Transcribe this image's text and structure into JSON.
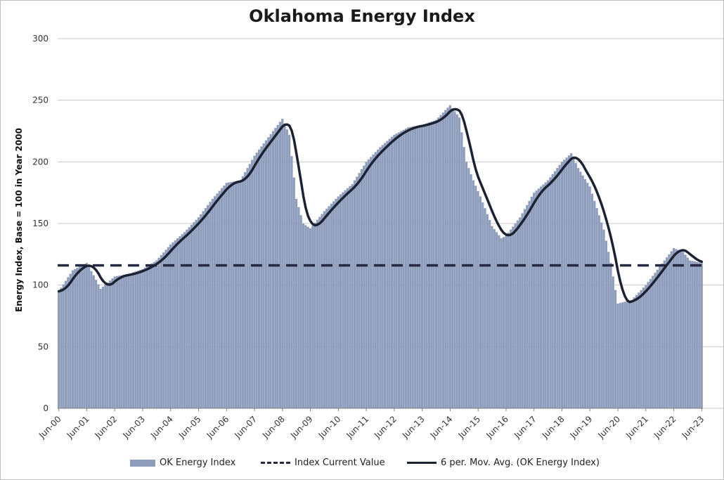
{
  "chart_data": {
    "type": "bar",
    "title": "Oklahoma Energy Index",
    "ylabel": "Energy Index, Base = 100 in Year 2000",
    "xlabel": "",
    "ylim": [
      0,
      300
    ],
    "yticks": [
      0,
      50,
      100,
      150,
      200,
      250,
      300
    ],
    "xtick_labels": [
      "Jun-00",
      "Jun-01",
      "Jun-02",
      "Jun-03",
      "Jun-04",
      "Jun-05",
      "Jun-06",
      "Jun-07",
      "Jun-08",
      "Jun-09",
      "Jun-10",
      "Jun-11",
      "Jun-12",
      "Jun-13",
      "Jun-14",
      "Jun-15",
      "Jun-16",
      "Jun-17",
      "Jun-18",
      "Jun-19",
      "Jun-20",
      "Jun-21",
      "Jun-22",
      "Jun-23"
    ],
    "grid": "horizontal",
    "legend_position": "bottom",
    "series": [
      {
        "name": "OK Energy Index",
        "type": "bar",
        "color": "#8e9dbb",
        "frequency": "monthly",
        "start": "Jun-00",
        "end": "Jun-23",
        "anchors": [
          [
            "Jun-00",
            95
          ],
          [
            "Dec-00",
            112
          ],
          [
            "Jun-01",
            118
          ],
          [
            "Sep-01",
            108
          ],
          [
            "Dec-01",
            97
          ],
          [
            "Jun-02",
            107
          ],
          [
            "Dec-02",
            109
          ],
          [
            "Jun-03",
            113
          ],
          [
            "Dec-03",
            120
          ],
          [
            "Jun-04",
            133
          ],
          [
            "Dec-04",
            143
          ],
          [
            "Jun-05",
            155
          ],
          [
            "Dec-05",
            170
          ],
          [
            "Jun-06",
            183
          ],
          [
            "Dec-06",
            185
          ],
          [
            "Jun-07",
            205
          ],
          [
            "Dec-07",
            220
          ],
          [
            "Jun-08",
            235
          ],
          [
            "Sep-08",
            222
          ],
          [
            "Dec-08",
            170
          ],
          [
            "Mar-09",
            150
          ],
          [
            "Jun-09",
            146
          ],
          [
            "Dec-09",
            160
          ],
          [
            "Jun-10",
            172
          ],
          [
            "Dec-10",
            182
          ],
          [
            "Jun-11",
            200
          ],
          [
            "Dec-11",
            212
          ],
          [
            "Jun-12",
            222
          ],
          [
            "Dec-12",
            228
          ],
          [
            "Jun-13",
            230
          ],
          [
            "Dec-13",
            234
          ],
          [
            "Jun-14",
            246
          ],
          [
            "Oct-14",
            236
          ],
          [
            "Jan-15",
            200
          ],
          [
            "Apr-15",
            185
          ],
          [
            "Jul-15",
            172
          ],
          [
            "Dec-15",
            148
          ],
          [
            "Apr-16",
            138
          ],
          [
            "Jun-16",
            140
          ],
          [
            "Dec-16",
            155
          ],
          [
            "Jun-17",
            175
          ],
          [
            "Dec-17",
            185
          ],
          [
            "Jun-18",
            200
          ],
          [
            "Oct-18",
            207
          ],
          [
            "Jan-19",
            195
          ],
          [
            "Jun-19",
            180
          ],
          [
            "Dec-19",
            145
          ],
          [
            "Mar-20",
            118
          ],
          [
            "Jun-20",
            85
          ],
          [
            "Dec-20",
            88
          ],
          [
            "Jun-21",
            100
          ],
          [
            "Dec-21",
            115
          ],
          [
            "Jun-22",
            130
          ],
          [
            "Oct-22",
            127
          ],
          [
            "Jan-23",
            120
          ],
          [
            "Jun-23",
            118
          ]
        ]
      },
      {
        "name": "Index Current Value",
        "type": "line",
        "style": "dashed",
        "color": "#252a42",
        "value": 116
      },
      {
        "name": "6 per. Mov. Avg. (OK Energy Index)",
        "type": "line",
        "style": "solid",
        "color": "#1d2233",
        "window": 6
      }
    ]
  }
}
